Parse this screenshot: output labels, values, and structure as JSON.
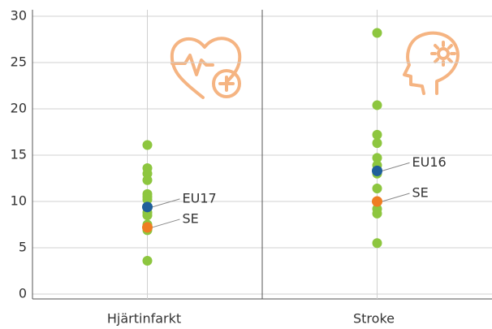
{
  "chart_data": {
    "type": "strip",
    "categories": [
      "Hjärtinfarkt",
      "Stroke"
    ],
    "ylim": [
      0,
      30
    ],
    "yticks": [
      0,
      5,
      10,
      15,
      20,
      25,
      30
    ],
    "grid": true,
    "color": "#8dc63f",
    "values": [
      [
        16.1,
        13.6,
        13.0,
        12.3,
        10.8,
        10.5,
        10.2,
        8.8,
        8.5,
        7.5,
        6.9,
        3.6
      ],
      [
        28.2,
        20.4,
        17.2,
        16.3,
        14.7,
        13.9,
        13.0,
        11.4,
        9.2,
        8.7,
        5.5
      ]
    ],
    "highlights": [
      [
        {
          "label": "EU17",
          "value": 9.4,
          "color": "#1f5f9b"
        },
        {
          "label": "SE",
          "value": 7.2,
          "color": "#ef7d22"
        }
      ],
      [
        {
          "label": "EU16",
          "value": 13.3,
          "color": "#1f5f9b"
        },
        {
          "label": "SE",
          "value": 10.0,
          "color": "#ef7d22"
        }
      ]
    ]
  }
}
